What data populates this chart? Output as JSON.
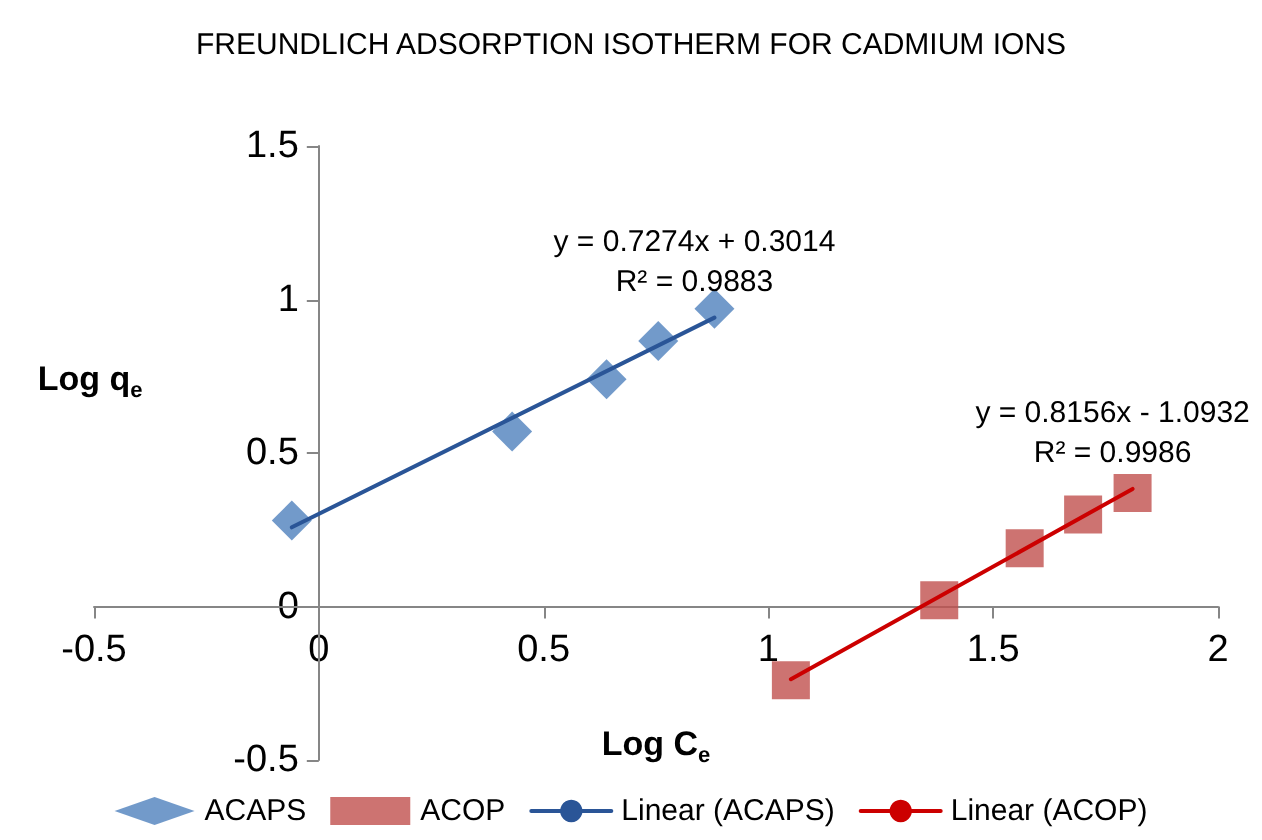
{
  "chart_data": {
    "type": "scatter",
    "title": "FREUNDLICH ADSORPTION ISOTHERM FOR CADMIUM IONS",
    "xlabel": "Log C$_{e}$",
    "ylabel": "Log q$_{e}$",
    "xlim": [
      -0.5,
      2
    ],
    "xticks": [
      -0.5,
      0,
      0.5,
      1,
      1.5,
      2
    ],
    "ylim": [
      -0.5,
      1.5
    ],
    "yticks": [
      -0.5,
      0,
      0.5,
      1,
      1.5
    ],
    "grid": false,
    "legend": "bottom",
    "series": [
      {
        "name": "ACAPS",
        "marker": "diamond",
        "color": "#4f81bd",
        "x": [
          -0.06,
          0.43,
          0.64,
          0.755,
          0.88
        ],
        "values": [
          0.28,
          0.57,
          0.74,
          0.865,
          0.97
        ]
      },
      {
        "name": "ACOP",
        "marker": "square",
        "color": "#c0504d",
        "x": [
          1.05,
          1.38,
          1.57,
          1.7,
          1.81
        ],
        "values": [
          -0.24,
          0.02,
          0.19,
          0.3,
          0.37
        ]
      },
      {
        "name": "Linear (ACAPS)",
        "type": "line",
        "marker": "none",
        "line_style": "solid",
        "color": "#2a5597",
        "x": [
          -0.06,
          0.88
        ],
        "values": [
          0.258,
          0.941
        ]
      },
      {
        "name": "Linear (ACOP)",
        "type": "line",
        "marker": "none",
        "line_style": "solid",
        "color": "#cc0000",
        "x": [
          1.05,
          1.81
        ],
        "values": [
          -0.237,
          0.383
        ]
      }
    ],
    "annotations": [
      {
        "text": "y = 0.7274x + 0.3014\nR² = 0.9883",
        "x": 0.88,
        "y": 0.941
      },
      {
        "text": "y = 0.8156x - 1.0932\nR² = 0.9986",
        "x": 1.81,
        "y": 0.383
      }
    ]
  }
}
